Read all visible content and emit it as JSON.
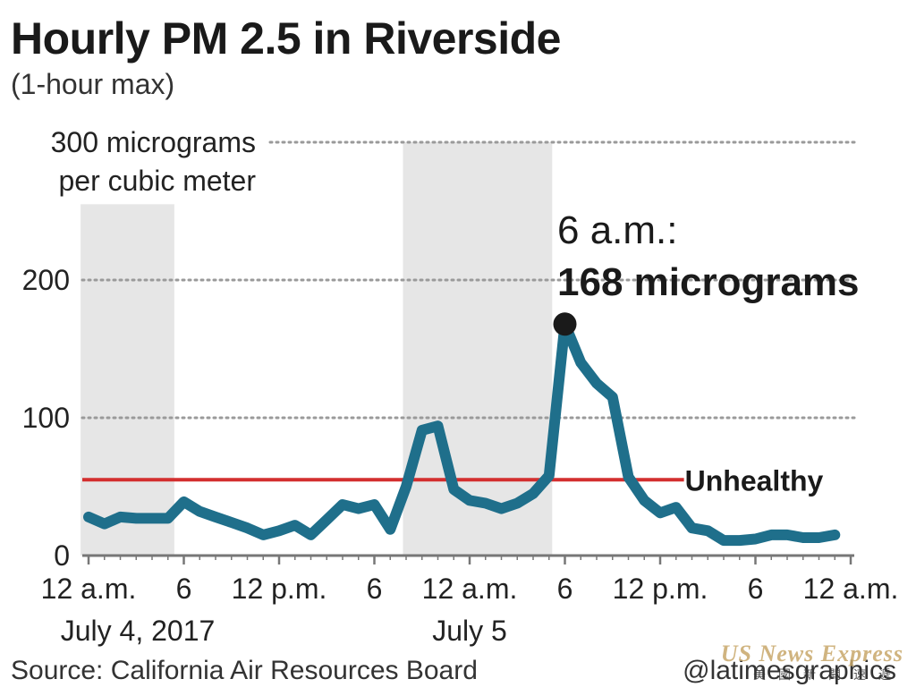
{
  "title": "Hourly PM 2.5 in Riverside",
  "subtitle": "(1-hour max)",
  "source": "Source: California Air Resources Board",
  "credit": "@latimesgraphics",
  "watermark": {
    "text": "US News Express",
    "subtext": "美國新聞速遞"
  },
  "colors": {
    "line": "#1f6f8b",
    "threshold": "#d32f2f",
    "night_shading": "#e6e6e6",
    "grid": "#9a9a9a",
    "text": "#222222"
  },
  "chart_data": {
    "type": "line",
    "title": "Hourly PM 2.5 in Riverside",
    "subtitle": "(1-hour max)",
    "ylim": [
      0,
      300
    ],
    "ylabel": "",
    "yticks": [
      {
        "value": 0,
        "label": "0"
      },
      {
        "value": 100,
        "label": "100"
      },
      {
        "value": 200,
        "label": "200"
      },
      {
        "value": 300,
        "label": "300 micrograms"
      }
    ],
    "ytick_unit_line": "per cubic meter",
    "xlim": [
      0,
      48
    ],
    "xticks": [
      {
        "hour": 0,
        "label": "12 a.m."
      },
      {
        "hour": 6,
        "label": "6"
      },
      {
        "hour": 12,
        "label": "12 p.m."
      },
      {
        "hour": 18,
        "label": "6"
      },
      {
        "hour": 24,
        "label": "12 a.m."
      },
      {
        "hour": 30,
        "label": "6"
      },
      {
        "hour": 36,
        "label": "12 p.m."
      },
      {
        "hour": 42,
        "label": "6"
      },
      {
        "hour": 48,
        "label": "12 a.m."
      }
    ],
    "date_labels": [
      {
        "hour": 0,
        "label": "July 4, 2017"
      },
      {
        "hour": 24,
        "label": "July 5"
      }
    ],
    "shaded_ranges": [
      {
        "from": -0.5,
        "to": 5.4,
        "top": 255
      },
      {
        "from": 19.8,
        "to": 29.2,
        "top": 300
      }
    ],
    "threshold": {
      "value": 55,
      "label": "Unhealthy",
      "x_end": 37.5
    },
    "series": [
      {
        "x": [
          0,
          1,
          2,
          3,
          4,
          5,
          6,
          7,
          8,
          9,
          10,
          11,
          12,
          13,
          14,
          15,
          16,
          17,
          18,
          19,
          20,
          21,
          22,
          23,
          24,
          25,
          26,
          27,
          28,
          29,
          30,
          31,
          32,
          33,
          34,
          35,
          36,
          37,
          38,
          39,
          40,
          41,
          42,
          43,
          44,
          45,
          46,
          47
        ],
        "values": [
          28,
          23,
          28,
          27,
          27,
          27,
          39,
          32,
          28,
          24,
          20,
          15,
          18,
          22,
          15,
          26,
          37,
          34,
          37,
          19,
          50,
          91,
          94,
          48,
          40,
          38,
          34,
          38,
          45,
          58,
          168,
          140,
          125,
          115,
          57,
          40,
          31,
          35,
          20,
          18,
          11,
          11,
          12,
          15,
          15,
          13,
          13,
          15
        ]
      }
    ],
    "annotation": {
      "hour": 30,
      "value": 168,
      "line1": "6 a.m.:",
      "line2": "168 micrograms"
    }
  }
}
